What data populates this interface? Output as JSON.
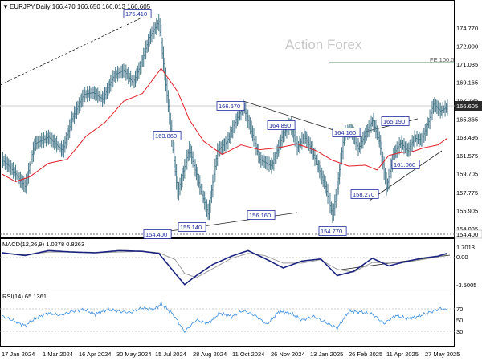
{
  "header": {
    "symbol_info": "EURJPY,Daily  166.470 166.650 166.013 166.605",
    "watermark": "Action Forex"
  },
  "colors": {
    "candles": "#4a7a8c",
    "ma": "#e0202a",
    "macd_line": "#1a237e",
    "macd_signal": "#9e9e9e",
    "rsi_line": "#3b8fe0",
    "label_box_border": "#1e2a9c",
    "label_text": "#1e2a9c",
    "price_highlight_bg": "#2b2b2b"
  },
  "chart_data": [
    {
      "type": "line",
      "title": "EURJPY,Daily",
      "ohlc_last": {
        "open": 166.47,
        "high": 166.65,
        "low": 166.013,
        "close": 166.605
      },
      "x_ticks": [
        "17 Jan 2024",
        "1 Mar 2024",
        "16 Apr 2024",
        "30 May 2024",
        "15 Jul 2024",
        "28 Aug 2024",
        "11 Oct 2024",
        "26 Nov 2024",
        "13 Jan 2025",
        "26 Feb 2025",
        "11 Apr 2025",
        "27 May 2025"
      ],
      "y_ticks": [
        174.77,
        172.9,
        171.035,
        169.165,
        167.295,
        165.365,
        163.495,
        161.575,
        159.705,
        157.775,
        155.905,
        154.035
      ],
      "ylim": [
        153.3,
        176.5
      ],
      "series": [
        {
          "name": "EURJPY",
          "close_index": [
            0,
            8,
            20,
            28,
            40,
            52,
            60,
            70,
            78,
            86,
            96,
            104,
            112,
            118,
            126,
            134,
            140,
            150,
            160,
            170,
            176,
            184,
            192,
            200,
            206,
            212,
            220,
            230,
            240,
            246,
            252,
            258,
            264,
            270,
            276,
            282,
            286,
            292,
            298,
            304,
            310,
            316,
            322,
            328,
            334,
            340,
            346,
            352,
            358,
            364,
            368,
            374,
            380
          ],
          "close": [
            161.2,
            160.3,
            158.4,
            162.8,
            163.5,
            162.1,
            165.4,
            167.9,
            168.1,
            167.4,
            169.9,
            170.4,
            169.1,
            170.8,
            173.8,
            175.41,
            168.9,
            157.7,
            162.3,
            157.9,
            155.6,
            162.1,
            163.0,
            165.3,
            166.67,
            164.5,
            161.2,
            160.5,
            163.8,
            164.89,
            162.4,
            163.6,
            162.3,
            160.3,
            158.4,
            155.4,
            158.27,
            163.9,
            164.16,
            162.3,
            163.8,
            165.19,
            163.1,
            158.27,
            161.7,
            162.9,
            162.1,
            163.4,
            163.2,
            165.1,
            166.9,
            166.2,
            166.605
          ]
        },
        {
          "name": "MA",
          "close_index": [
            0,
            12,
            24,
            40,
            56,
            72,
            88,
            104,
            120,
            136,
            150,
            160,
            172,
            188,
            204,
            220,
            236,
            252,
            268,
            282,
            296,
            310,
            320,
            330,
            340,
            350,
            360,
            372,
            380
          ],
          "close": [
            159.7,
            158.9,
            159.4,
            160.8,
            161.2,
            163.6,
            165.0,
            167.2,
            168.0,
            170.6,
            168.2,
            165.3,
            163.1,
            161.7,
            162.7,
            162.2,
            162.4,
            162.8,
            162.1,
            161.1,
            160.5,
            160.6,
            160.1,
            161.6,
            161.9,
            162.0,
            162.4,
            162.7,
            163.4
          ]
        }
      ],
      "annotations": [
        "175.410",
        "163.860",
        "154.400",
        "155.140",
        "156.160",
        "166.670",
        "164.890",
        "164.160",
        "165.190",
        "161.060",
        "158.270",
        "154.770",
        "FE 100.0"
      ],
      "axis_labels_right": [
        "174.770",
        "172.900",
        "171.035",
        "169.165",
        "167.295",
        "165.365",
        "163.495",
        "161.575",
        "159.705",
        "157.775",
        "155.905",
        "154.035"
      ],
      "current_price_label": "166.605",
      "support_label": "154.400"
    },
    {
      "type": "line",
      "title": "MACD(12,26,9) 1.0278 0.8263",
      "y_ticks_labels": [
        "1.7013",
        "0.00",
        "-3.5005"
      ],
      "ylim": [
        -4.0,
        2.6
      ],
      "series": [
        {
          "name": "MACD",
          "close_index": [
            0,
            20,
            40,
            60,
            80,
            100,
            120,
            134,
            148,
            156,
            166,
            180,
            196,
            210,
            224,
            240,
            256,
            272,
            286,
            300,
            316,
            330,
            344,
            358,
            372,
            380
          ],
          "close": [
            1.1,
            0.7,
            1.4,
            1.2,
            1.1,
            1.4,
            1.3,
            1.0,
            -1.9,
            -3.5,
            -2.2,
            -0.6,
            0.6,
            1.4,
            0.3,
            -1.1,
            -0.1,
            0.2,
            -2.2,
            -1.6,
            0.3,
            -0.8,
            -0.2,
            0.3,
            0.6,
            1.03
          ]
        },
        {
          "name": "Signal",
          "close_index": [
            0,
            20,
            40,
            60,
            80,
            100,
            120,
            134,
            148,
            156,
            166,
            180,
            196,
            210,
            224,
            240,
            256,
            272,
            286,
            300,
            316,
            330,
            344,
            358,
            372,
            380
          ],
          "close": [
            1.0,
            0.8,
            1.2,
            1.2,
            1.1,
            1.2,
            1.3,
            1.1,
            0.1,
            -1.9,
            -2.5,
            -1.2,
            0.3,
            1.0,
            0.7,
            -0.4,
            -0.4,
            0.1,
            -1.3,
            -1.7,
            -0.3,
            -0.4,
            -0.3,
            0.1,
            0.5,
            0.83
          ]
        }
      ]
    },
    {
      "type": "line",
      "title": "RSI(14) 65.1361",
      "y_ticks_labels": [
        "70",
        "50",
        "30"
      ],
      "ylim": [
        5,
        95
      ],
      "series": [
        {
          "name": "RSI",
          "close_index": [
            0,
            10,
            20,
            30,
            40,
            50,
            60,
            70,
            80,
            90,
            100,
            110,
            120,
            130,
            136,
            146,
            156,
            166,
            176,
            186,
            196,
            206,
            216,
            226,
            236,
            246,
            256,
            266,
            276,
            286,
            296,
            306,
            316,
            326,
            336,
            346,
            356,
            366,
            374,
            380
          ],
          "close": [
            55,
            47,
            38,
            52,
            60,
            56,
            63,
            66,
            58,
            66,
            63,
            61,
            69,
            66,
            76,
            58,
            28,
            48,
            42,
            60,
            54,
            64,
            56,
            40,
            62,
            60,
            48,
            54,
            44,
            34,
            63,
            62,
            58,
            42,
            56,
            50,
            55,
            62,
            68,
            65.1
          ]
        }
      ]
    }
  ],
  "macd_label": "MACD(12,26,9) 1.0278 0.8263",
  "rsi_label": "RSI(14) 65.1361"
}
